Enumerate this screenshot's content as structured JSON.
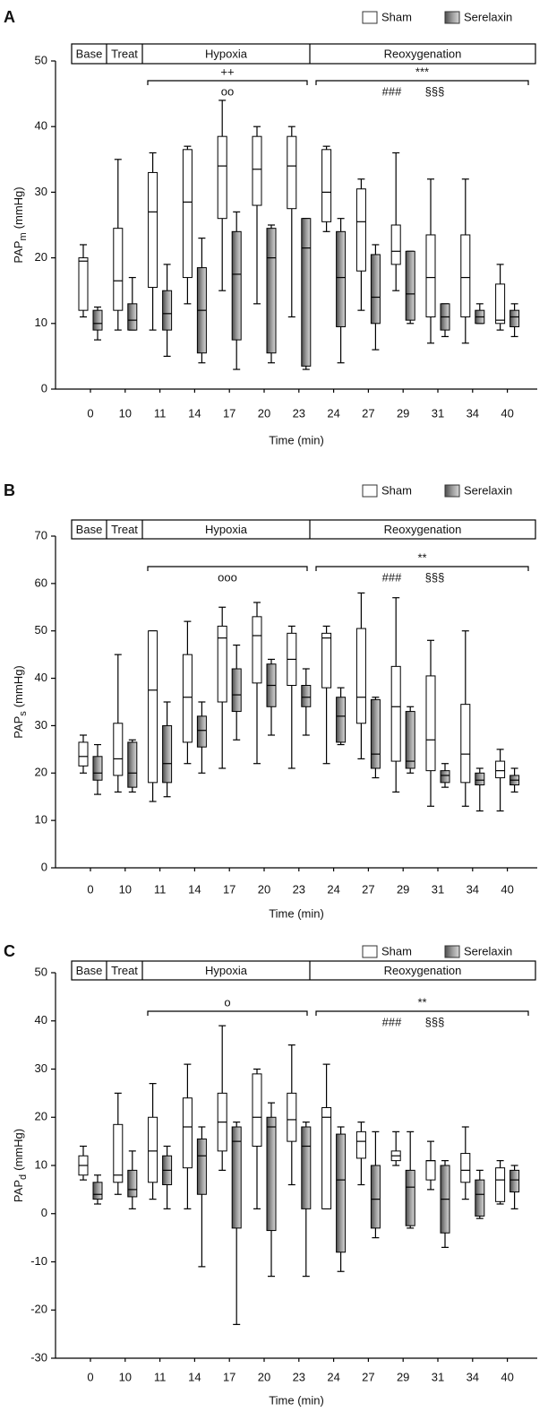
{
  "chart_data": [
    {
      "type": "box",
      "panel": "A",
      "ylabel": "PAP",
      "ylabel_sub": "m",
      "ylabel_unit": "(mmHg)",
      "xlabel": "Time (min)",
      "categories": [
        "0",
        "10",
        "11",
        "14",
        "17",
        "20",
        "23",
        "24",
        "27",
        "29",
        "31",
        "34",
        "40"
      ],
      "phases": [
        "Base",
        "Treat",
        "Hypoxia",
        "Reoxygenation"
      ],
      "hypoxia_above": [
        "++"
      ],
      "hypoxia_below": [
        "oo"
      ],
      "reox_above": [
        "***"
      ],
      "reox_below": [
        "###",
        "§§§"
      ],
      "ylim": [
        0,
        50
      ],
      "yticks": [
        0,
        10,
        20,
        30,
        40,
        50
      ],
      "series": [
        {
          "name": "Sham",
          "color": "#ffffff",
          "values": [
            {
              "low": 11,
              "q1": 12,
              "median": 19.5,
              "q3": 20,
              "high": 22
            },
            {
              "low": 9,
              "q1": 12,
              "median": 16.5,
              "q3": 24.5,
              "high": 35
            },
            {
              "low": 9,
              "q1": 15.5,
              "median": 27,
              "q3": 33,
              "high": 36
            },
            {
              "low": 13,
              "q1": 17,
              "median": 28.5,
              "q3": 36.5,
              "high": 37
            },
            {
              "low": 15,
              "q1": 26,
              "median": 34,
              "q3": 38.5,
              "high": 44
            },
            {
              "low": 13,
              "q1": 28,
              "median": 33.5,
              "q3": 38.5,
              "high": 40
            },
            {
              "low": 11,
              "q1": 27.5,
              "median": 34,
              "q3": 38.5,
              "high": 40
            },
            {
              "low": 24,
              "q1": 25.5,
              "median": 30,
              "q3": 36.5,
              "high": 37
            },
            {
              "low": 12,
              "q1": 18,
              "median": 25.5,
              "q3": 30.5,
              "high": 32
            },
            {
              "low": 15,
              "q1": 19,
              "median": 21,
              "q3": 25,
              "high": 36
            },
            {
              "low": 7,
              "q1": 11,
              "median": 17,
              "q3": 23.5,
              "high": 32
            },
            {
              "low": 7,
              "q1": 11,
              "median": 17,
              "q3": 23.5,
              "high": 32
            },
            {
              "low": 9,
              "q1": 10,
              "median": 10.5,
              "q3": 16,
              "high": 19
            }
          ]
        },
        {
          "name": "Serelaxin",
          "color": "#8a8a8a",
          "values": [
            {
              "low": 7.5,
              "q1": 9,
              "median": 10,
              "q3": 12,
              "high": 12.5
            },
            {
              "low": 9,
              "q1": 9,
              "median": 10.5,
              "q3": 13,
              "high": 17
            },
            {
              "low": 5,
              "q1": 9,
              "median": 11.5,
              "q3": 15,
              "high": 19
            },
            {
              "low": 4,
              "q1": 5.5,
              "median": 12,
              "q3": 18.5,
              "high": 23
            },
            {
              "low": 3,
              "q1": 7.5,
              "median": 17.5,
              "q3": 24,
              "high": 27
            },
            {
              "low": 4,
              "q1": 5.5,
              "median": 20,
              "q3": 24.5,
              "high": 25
            },
            {
              "low": 3,
              "q1": 3.5,
              "median": 21.5,
              "q3": 26,
              "high": 26
            },
            {
              "low": 4,
              "q1": 9.5,
              "median": 17,
              "q3": 24,
              "high": 26
            },
            {
              "low": 6,
              "q1": 10,
              "median": 14,
              "q3": 20.5,
              "high": 22
            },
            {
              "low": 10,
              "q1": 10.5,
              "median": 14.5,
              "q3": 21,
              "high": 21
            },
            {
              "low": 8,
              "q1": 9,
              "median": 11,
              "q3": 13,
              "high": 13
            },
            {
              "low": 10,
              "q1": 10,
              "median": 11,
              "q3": 12,
              "high": 13
            },
            {
              "low": 8,
              "q1": 9.5,
              "median": 11,
              "q3": 12,
              "high": 13
            }
          ]
        }
      ]
    },
    {
      "type": "box",
      "panel": "B",
      "ylabel": "PAP",
      "ylabel_sub": "s",
      "ylabel_unit": "(mmHg)",
      "xlabel": "Time (min)",
      "categories": [
        "0",
        "10",
        "11",
        "14",
        "17",
        "20",
        "23",
        "24",
        "27",
        "29",
        "31",
        "34",
        "40"
      ],
      "phases": [
        "Base",
        "Treat",
        "Hypoxia",
        "Reoxygenation"
      ],
      "hypoxia_below": [
        "ooo"
      ],
      "reox_above": [
        "**"
      ],
      "reox_below": [
        "###",
        "§§§"
      ],
      "ylim": [
        0,
        70
      ],
      "yticks": [
        0,
        10,
        20,
        30,
        40,
        50,
        60,
        70
      ],
      "series": [
        {
          "name": "Sham",
          "color": "#ffffff",
          "values": [
            {
              "low": 20,
              "q1": 21.5,
              "median": 23.5,
              "q3": 26.5,
              "high": 28
            },
            {
              "low": 16,
              "q1": 19.5,
              "median": 23,
              "q3": 30.5,
              "high": 45
            },
            {
              "low": 14,
              "q1": 18,
              "median": 37.5,
              "q3": 50,
              "high": 50
            },
            {
              "low": 22,
              "q1": 26.5,
              "median": 36,
              "q3": 45,
              "high": 52
            },
            {
              "low": 21,
              "q1": 35,
              "median": 48.5,
              "q3": 51,
              "high": 55
            },
            {
              "low": 22,
              "q1": 39,
              "median": 49,
              "q3": 53,
              "high": 56
            },
            {
              "low": 21,
              "q1": 38.5,
              "median": 44,
              "q3": 49.5,
              "high": 51
            },
            {
              "low": 22,
              "q1": 38,
              "median": 48.5,
              "q3": 49.5,
              "high": 51
            },
            {
              "low": 23,
              "q1": 30.5,
              "median": 36,
              "q3": 50.5,
              "high": 58
            },
            {
              "low": 16,
              "q1": 22.5,
              "median": 34,
              "q3": 42.5,
              "high": 57
            },
            {
              "low": 13,
              "q1": 20.5,
              "median": 27,
              "q3": 40.5,
              "high": 48
            },
            {
              "low": 13,
              "q1": 18,
              "median": 24,
              "q3": 34.5,
              "high": 50
            },
            {
              "low": 12,
              "q1": 19,
              "median": 20.5,
              "q3": 22.5,
              "high": 25
            }
          ]
        },
        {
          "name": "Serelaxin",
          "color": "#8a8a8a",
          "values": [
            {
              "low": 15.5,
              "q1": 18.5,
              "median": 20,
              "q3": 23.5,
              "high": 26
            },
            {
              "low": 16,
              "q1": 17,
              "median": 20,
              "q3": 26.5,
              "high": 27
            },
            {
              "low": 15,
              "q1": 18,
              "median": 22,
              "q3": 30,
              "high": 35
            },
            {
              "low": 20,
              "q1": 25.5,
              "median": 29,
              "q3": 32,
              "high": 35
            },
            {
              "low": 27,
              "q1": 33,
              "median": 36.5,
              "q3": 42,
              "high": 47
            },
            {
              "low": 28,
              "q1": 34,
              "median": 38.5,
              "q3": 43,
              "high": 44
            },
            {
              "low": 28,
              "q1": 34,
              "median": 36,
              "q3": 38.5,
              "high": 42
            },
            {
              "low": 26,
              "q1": 26.5,
              "median": 32,
              "q3": 36,
              "high": 38
            },
            {
              "low": 19,
              "q1": 21,
              "median": 24,
              "q3": 35.5,
              "high": 36
            },
            {
              "low": 20,
              "q1": 21,
              "median": 22.5,
              "q3": 33,
              "high": 34
            },
            {
              "low": 17,
              "q1": 18,
              "median": 19.5,
              "q3": 20.5,
              "high": 22
            },
            {
              "low": 12,
              "q1": 17.5,
              "median": 18.5,
              "q3": 20,
              "high": 21
            },
            {
              "low": 16,
              "q1": 17.5,
              "median": 18.5,
              "q3": 19.5,
              "high": 21
            }
          ]
        }
      ]
    },
    {
      "type": "box",
      "panel": "C",
      "ylabel": "PAP",
      "ylabel_sub": "d",
      "ylabel_unit": "(mmHg)",
      "xlabel": "Time (min)",
      "categories": [
        "0",
        "10",
        "11",
        "14",
        "17",
        "20",
        "23",
        "24",
        "27",
        "29",
        "31",
        "34",
        "40"
      ],
      "phases": [
        "Base",
        "Treat",
        "Hypoxia",
        "Reoxygenation"
      ],
      "hypoxia_above": [
        "o"
      ],
      "reox_above": [
        "**"
      ],
      "reox_below": [
        "###",
        "§§§"
      ],
      "ylim": [
        -30,
        50
      ],
      "yticks": [
        -30,
        -20,
        -10,
        0,
        10,
        20,
        30,
        40,
        50
      ],
      "series": [
        {
          "name": "Sham",
          "color": "#ffffff",
          "values": [
            {
              "low": 7,
              "q1": 8,
              "median": 10,
              "q3": 12,
              "high": 14
            },
            {
              "low": 4,
              "q1": 6.5,
              "median": 8,
              "q3": 18.5,
              "high": 25
            },
            {
              "low": 3,
              "q1": 6.5,
              "median": 13,
              "q3": 20,
              "high": 27
            },
            {
              "low": 1,
              "q1": 9.5,
              "median": 18,
              "q3": 24,
              "high": 31
            },
            {
              "low": 9,
              "q1": 13,
              "median": 19,
              "q3": 25,
              "high": 39
            },
            {
              "low": 1,
              "q1": 14,
              "median": 20,
              "q3": 29,
              "high": 30
            },
            {
              "low": 6,
              "q1": 15,
              "median": 19.5,
              "q3": 25,
              "high": 35
            },
            {
              "low": 1,
              "q1": 1,
              "median": 20,
              "q3": 22,
              "high": 31
            },
            {
              "low": 6,
              "q1": 11.5,
              "median": 15,
              "q3": 17,
              "high": 19
            },
            {
              "low": 10,
              "q1": 11,
              "median": 12,
              "q3": 13,
              "high": 17
            },
            {
              "low": 5,
              "q1": 7,
              "median": 11,
              "q3": 11,
              "high": 15
            },
            {
              "low": 3,
              "q1": 6.5,
              "median": 9,
              "q3": 12.5,
              "high": 18
            },
            {
              "low": 2,
              "q1": 2.5,
              "median": 7,
              "q3": 9.5,
              "high": 11
            }
          ]
        },
        {
          "name": "Serelaxin",
          "color": "#8a8a8a",
          "values": [
            {
              "low": 2,
              "q1": 3,
              "median": 4,
              "q3": 6.5,
              "high": 8
            },
            {
              "low": 1,
              "q1": 3.5,
              "median": 5,
              "q3": 9,
              "high": 13
            },
            {
              "low": 1,
              "q1": 6,
              "median": 9,
              "q3": 12,
              "high": 14
            },
            {
              "low": -11,
              "q1": 4,
              "median": 12,
              "q3": 15.5,
              "high": 18
            },
            {
              "low": -23,
              "q1": -3,
              "median": 15,
              "q3": 18,
              "high": 19
            },
            {
              "low": -13,
              "q1": -3.5,
              "median": 18,
              "q3": 20,
              "high": 23
            },
            {
              "low": -13,
              "q1": 1,
              "median": 14,
              "q3": 18,
              "high": 19
            },
            {
              "low": -12,
              "q1": -8,
              "median": 7,
              "q3": 16.5,
              "high": 18
            },
            {
              "low": -5,
              "q1": -3,
              "median": 3,
              "q3": 10,
              "high": 17
            },
            {
              "low": -3,
              "q1": -2.5,
              "median": 5.5,
              "q3": 9,
              "high": 17
            },
            {
              "low": -7,
              "q1": -4,
              "median": 3,
              "q3": 10,
              "high": 11
            },
            {
              "low": -1,
              "q1": -0.5,
              "median": 4,
              "q3": 7,
              "high": 9
            },
            {
              "low": 1,
              "q1": 4.5,
              "median": 7,
              "q3": 9,
              "high": 10
            }
          ]
        }
      ]
    }
  ]
}
